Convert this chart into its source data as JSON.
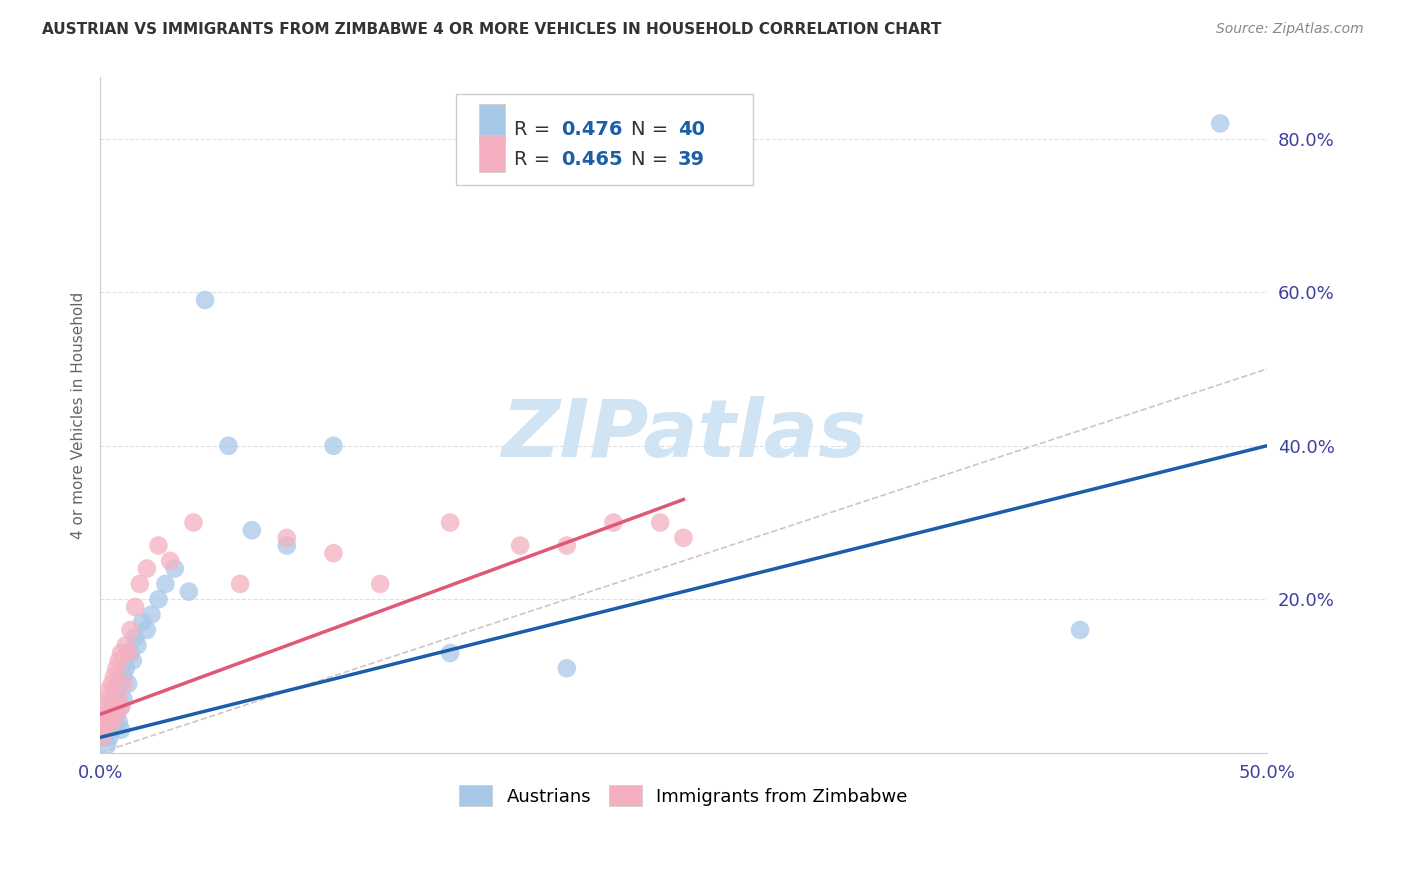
{
  "title": "AUSTRIAN VS IMMIGRANTS FROM ZIMBABWE 4 OR MORE VEHICLES IN HOUSEHOLD CORRELATION CHART",
  "source": "Source: ZipAtlas.com",
  "ylabel": "4 or more Vehicles in Household",
  "xlim": [
    0.0,
    0.5
  ],
  "ylim": [
    0.0,
    0.88
  ],
  "xtick_vals": [
    0.0,
    0.1,
    0.2,
    0.3,
    0.4,
    0.5
  ],
  "ytick_vals": [
    0.0,
    0.2,
    0.4,
    0.6,
    0.8
  ],
  "ytick_labels": [
    "",
    "20.0%",
    "40.0%",
    "60.0%",
    "80.0%"
  ],
  "legend_blue_label": "Austrians",
  "legend_pink_label": "Immigrants from Zimbabwe",
  "blue_R": "0.476",
  "blue_N": "40",
  "pink_R": "0.465",
  "pink_N": "39",
  "blue_color": "#a8c8e8",
  "pink_color": "#f4b0c0",
  "blue_line_color": "#1a5fa8",
  "pink_line_color": "#e05878",
  "diagonal_color": "#d8c0c8",
  "background_color": "#ffffff",
  "grid_color": "#e0e0e0",
  "watermark_color": "#d0e4f4",
  "blue_x": [
    0.001,
    0.002,
    0.003,
    0.003,
    0.004,
    0.004,
    0.005,
    0.005,
    0.006,
    0.006,
    0.007,
    0.007,
    0.008,
    0.008,
    0.009,
    0.009,
    0.01,
    0.01,
    0.011,
    0.012,
    0.013,
    0.014,
    0.015,
    0.016,
    0.018,
    0.02,
    0.022,
    0.025,
    0.028,
    0.032,
    0.038,
    0.045,
    0.055,
    0.065,
    0.08,
    0.1,
    0.15,
    0.2,
    0.42,
    0.48
  ],
  "blue_y": [
    0.02,
    0.03,
    0.01,
    0.04,
    0.02,
    0.05,
    0.03,
    0.06,
    0.04,
    0.07,
    0.05,
    0.08,
    0.04,
    0.09,
    0.03,
    0.06,
    0.07,
    0.1,
    0.11,
    0.09,
    0.13,
    0.12,
    0.15,
    0.14,
    0.17,
    0.16,
    0.18,
    0.2,
    0.22,
    0.24,
    0.21,
    0.59,
    0.4,
    0.29,
    0.27,
    0.4,
    0.13,
    0.11,
    0.16,
    0.82
  ],
  "pink_x": [
    0.001,
    0.001,
    0.002,
    0.002,
    0.003,
    0.003,
    0.003,
    0.004,
    0.004,
    0.005,
    0.005,
    0.006,
    0.006,
    0.007,
    0.007,
    0.008,
    0.008,
    0.009,
    0.009,
    0.01,
    0.011,
    0.012,
    0.013,
    0.015,
    0.017,
    0.02,
    0.025,
    0.03,
    0.04,
    0.06,
    0.08,
    0.1,
    0.12,
    0.15,
    0.18,
    0.2,
    0.22,
    0.24,
    0.25
  ],
  "pink_y": [
    0.02,
    0.04,
    0.03,
    0.05,
    0.04,
    0.06,
    0.08,
    0.05,
    0.07,
    0.04,
    0.09,
    0.06,
    0.1,
    0.05,
    0.11,
    0.07,
    0.12,
    0.06,
    0.13,
    0.09,
    0.14,
    0.13,
    0.16,
    0.19,
    0.22,
    0.24,
    0.27,
    0.25,
    0.3,
    0.22,
    0.28,
    0.26,
    0.22,
    0.3,
    0.27,
    0.27,
    0.3,
    0.3,
    0.28
  ],
  "blue_line_x": [
    0.0,
    0.5
  ],
  "blue_line_y": [
    0.02,
    0.4
  ],
  "pink_line_x": [
    0.0,
    0.25
  ],
  "pink_line_y": [
    0.05,
    0.33
  ]
}
